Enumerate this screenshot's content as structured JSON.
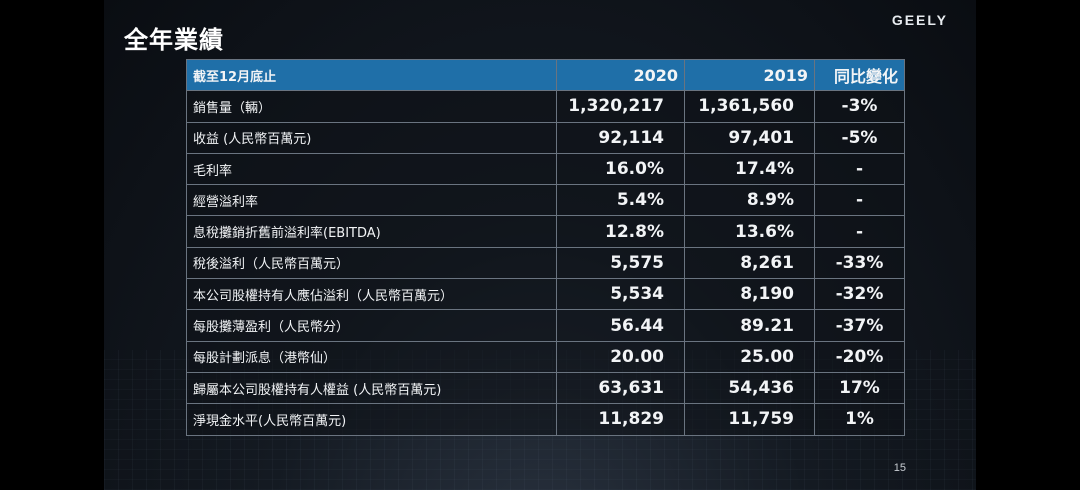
{
  "slide": {
    "title": "全年業績",
    "logo": "GEELY",
    "page_number": "15"
  },
  "table": {
    "headers": [
      "截至12月底止",
      "2020",
      "2019",
      "同比變化"
    ],
    "rows": [
      {
        "label": "銷售量（輛）",
        "y2020": "1,320,217",
        "y2019": "1,361,560",
        "change": "-3%"
      },
      {
        "label": "收益 (人民幣百萬元)",
        "y2020": "92,114",
        "y2019": "97,401",
        "change": "-5%"
      },
      {
        "label": "毛利率",
        "y2020": "16.0%",
        "y2019": "17.4%",
        "change": "-"
      },
      {
        "label": "經營溢利率",
        "y2020": "5.4%",
        "y2019": "8.9%",
        "change": "-"
      },
      {
        "label": "息稅攤銷折舊前溢利率(EBITDA)",
        "y2020": "12.8%",
        "y2019": "13.6%",
        "change": "-"
      },
      {
        "label": "稅後溢利（人民幣百萬元）",
        "y2020": "5,575",
        "y2019": "8,261",
        "change": "-33%"
      },
      {
        "label": "本公司股權持有人應佔溢利（人民幣百萬元）",
        "y2020": "5,534",
        "y2019": "8,190",
        "change": "-32%"
      },
      {
        "label": "每股攤薄盈利（人民幣分）",
        "y2020": "56.44",
        "y2019": "89.21",
        "change": "-37%"
      },
      {
        "label": "每股計劃派息（港幣仙）",
        "y2020": "20.00",
        "y2019": "25.00",
        "change": "-20%"
      },
      {
        "label": "歸屬本公司股權持有人權益 (人民幣百萬元)",
        "y2020": "63,631",
        "y2019": "54,436",
        "change": "17%"
      },
      {
        "label": "淨現金水平(人民幣百萬元)",
        "y2020": "11,829",
        "y2019": "11,759",
        "change": "1%"
      }
    ]
  },
  "colors": {
    "header_bg": "#1f6fa8",
    "text": "#f2f4f6",
    "border": "#6a7480"
  }
}
